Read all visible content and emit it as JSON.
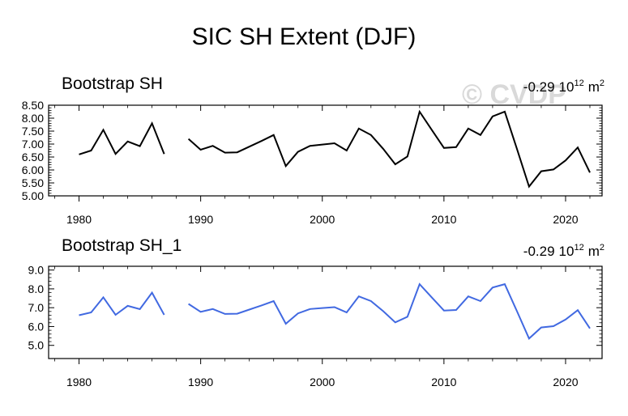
{
  "figure_title": "SIC SH Extent (DJF)",
  "watermark": "© CVDP",
  "chart_data": [
    {
      "type": "line",
      "title": "Bootstrap SH",
      "trend_value": "-0.29",
      "trend_exponent_base": "10",
      "trend_exponent": "12",
      "trend_unit": "m",
      "trend_unit_power": "2",
      "color": "#000000",
      "xlim": [
        1977.5,
        2023
      ],
      "ylim": [
        5.0,
        8.5
      ],
      "xticks": [
        1980,
        1990,
        2000,
        2010,
        2020
      ],
      "xtick_labels": [
        "1980",
        "1990",
        "2000",
        "2010",
        "2020"
      ],
      "yticks": [
        5.0,
        5.5,
        6.0,
        6.5,
        7.0,
        7.5,
        8.0,
        8.5
      ],
      "ytick_labels": [
        "5.00",
        "5.50",
        "6.00",
        "6.50",
        "7.00",
        "7.50",
        "8.00",
        "8.50"
      ],
      "series": [
        {
          "name": "Bootstrap SH",
          "x": [
            1980,
            1981,
            1982,
            1983,
            1984,
            1985,
            1986,
            1987,
            1988,
            1989,
            1990,
            1991,
            1992,
            1993,
            1994,
            1995,
            1996,
            1997,
            1998,
            1999,
            2000,
            2001,
            2002,
            2003,
            2004,
            2005,
            2006,
            2007,
            2008,
            2009,
            2010,
            2011,
            2012,
            2013,
            2014,
            2015,
            2016,
            2017,
            2018,
            2019,
            2020,
            2021,
            2022
          ],
          "values": [
            6.6,
            6.75,
            7.55,
            6.62,
            7.1,
            6.92,
            7.8,
            6.62,
            null,
            7.2,
            6.78,
            6.93,
            6.67,
            6.68,
            6.9,
            7.12,
            7.35,
            6.15,
            6.7,
            6.93,
            6.98,
            7.03,
            6.75,
            7.6,
            7.35,
            6.82,
            6.22,
            6.52,
            8.25,
            7.55,
            6.85,
            6.88,
            7.6,
            7.35,
            8.07,
            8.25,
            6.82,
            5.36,
            5.95,
            6.02,
            6.37,
            6.87,
            5.9
          ]
        }
      ]
    },
    {
      "type": "line",
      "title": "Bootstrap SH_1",
      "trend_value": "-0.29",
      "trend_exponent_base": "10",
      "trend_exponent": "12",
      "trend_unit": "m",
      "trend_unit_power": "2",
      "color": "#4169e1",
      "xlim": [
        1977.5,
        2023
      ],
      "ylim": [
        4.3,
        9.2
      ],
      "xticks": [
        1980,
        1990,
        2000,
        2010,
        2020
      ],
      "xtick_labels": [
        "1980",
        "1990",
        "2000",
        "2010",
        "2020"
      ],
      "yticks": [
        5.0,
        6.0,
        7.0,
        8.0,
        9.0
      ],
      "ytick_labels": [
        "5.0",
        "6.0",
        "7.0",
        "8.0",
        "9.0"
      ],
      "series": [
        {
          "name": "Bootstrap SH_1",
          "x": [
            1980,
            1981,
            1982,
            1983,
            1984,
            1985,
            1986,
            1987,
            1988,
            1989,
            1990,
            1991,
            1992,
            1993,
            1994,
            1995,
            1996,
            1997,
            1998,
            1999,
            2000,
            2001,
            2002,
            2003,
            2004,
            2005,
            2006,
            2007,
            2008,
            2009,
            2010,
            2011,
            2012,
            2013,
            2014,
            2015,
            2016,
            2017,
            2018,
            2019,
            2020,
            2021,
            2022
          ],
          "values": [
            6.6,
            6.75,
            7.55,
            6.62,
            7.1,
            6.92,
            7.8,
            6.62,
            null,
            7.2,
            6.78,
            6.93,
            6.67,
            6.68,
            6.9,
            7.12,
            7.35,
            6.15,
            6.7,
            6.93,
            6.98,
            7.03,
            6.75,
            7.6,
            7.35,
            6.82,
            6.22,
            6.52,
            8.25,
            7.55,
            6.85,
            6.88,
            7.6,
            7.35,
            8.07,
            8.25,
            6.82,
            5.36,
            5.95,
            6.02,
            6.37,
            6.87,
            5.9
          ]
        }
      ]
    }
  ]
}
